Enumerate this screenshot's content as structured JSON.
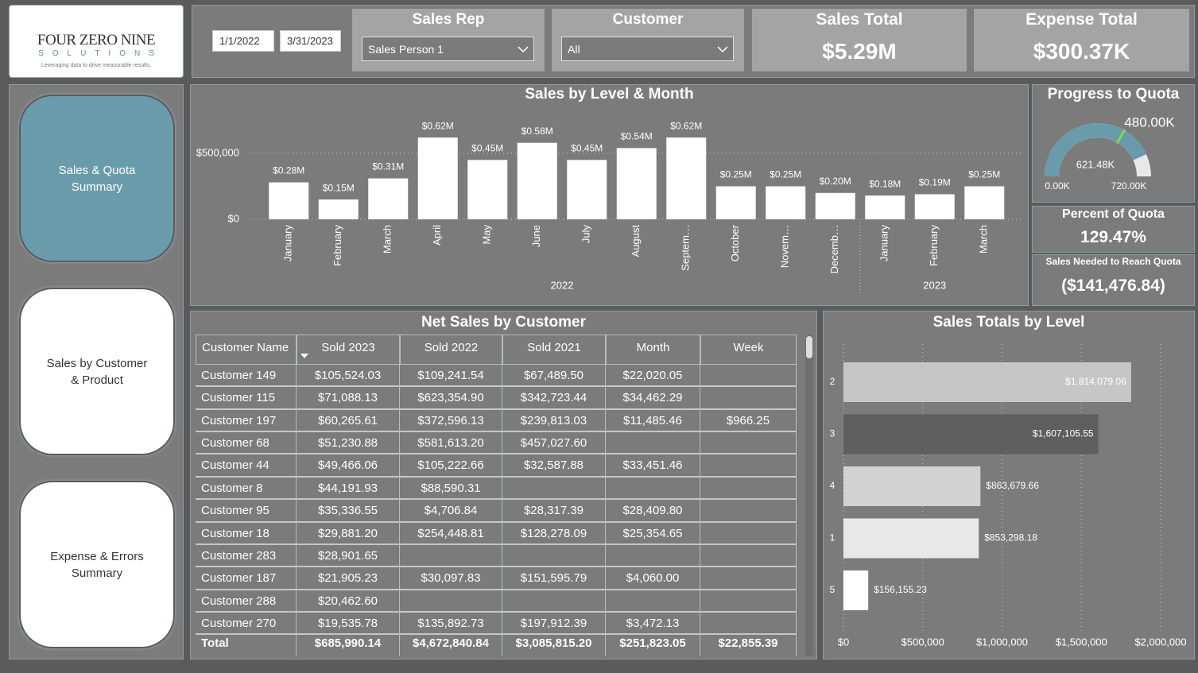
{
  "logo": {
    "words": [
      "FOUR",
      "ZERO",
      "NINE"
    ],
    "subtitle": "SOLUTIONS",
    "tagline": "Leveraging data to drive measurable results."
  },
  "navigation": [
    "Sales & Quota Summary",
    "Sales by Customer & Product",
    "Expense & Errors Summary"
  ],
  "filters": {
    "start_date": "1/1/2022",
    "end_date": "3/31/2023",
    "sales_rep": {
      "label": "Sales Rep",
      "value": "Sales Person 1"
    },
    "customer": {
      "label": "Customer",
      "value": "All"
    }
  },
  "kpis": {
    "sales_total": {
      "label": "Sales Total",
      "value": "$5.29M"
    },
    "expense_total": {
      "label": "Expense Total",
      "value": "$300.37K"
    },
    "percent_quota": {
      "label": "Percent of Quota",
      "value": "129.47%"
    },
    "sales_needed": {
      "label": "Sales Needed to Reach Quota",
      "value": "($141,476.84)"
    }
  },
  "table": {
    "title": "Net Sales by Customer",
    "columns": [
      "Customer Name",
      "Sold 2023",
      "Sold 2022",
      "Sold 2021",
      "Month",
      "Week"
    ],
    "rows": [
      [
        "Customer 149",
        "$105,524.03",
        "$109,241.54",
        "$67,489.50",
        "$22,020.05",
        null
      ],
      [
        "Customer 115",
        "$71,088.13",
        "$623,354.90",
        "$342,723.44",
        "$34,462.29",
        null
      ],
      [
        "Customer 197",
        "$60,265.61",
        "$372,596.13",
        "$239,813.03",
        "$11,485.46",
        "$966.25"
      ],
      [
        "Customer 68",
        "$51,230.88",
        "$581,613.20",
        "$457,027.60",
        null,
        null
      ],
      [
        "Customer 44",
        "$49,466.06",
        "$105,222.66",
        "$32,587.88",
        "$33,451.46",
        null
      ],
      [
        "Customer 8",
        "$44,191.93",
        "$88,590.31",
        null,
        null,
        null
      ],
      [
        "Customer 95",
        "$35,336.55",
        "$4,706.84",
        "$28,317.39",
        "$28,409.80",
        null
      ],
      [
        "Customer 18",
        "$29,881.20",
        "$254,448.81",
        "$128,278.09",
        "$25,354.65",
        null
      ],
      [
        "Customer 283",
        "$28,901.65",
        null,
        null,
        null,
        null
      ],
      [
        "Customer 187",
        "$21,905.23",
        "$30,097.83",
        "$151,595.79",
        "$4,060.00",
        null
      ],
      [
        "Customer 288",
        "$20,462.60",
        null,
        null,
        null,
        null
      ],
      [
        "Customer 270",
        "$19,535.78",
        "$135,892.73",
        "$197,912.39",
        "$3,472.13",
        null
      ]
    ],
    "total": [
      "Total",
      "$685,990.14",
      "$4,672,840.84",
      "$3,085,815.20",
      "$251,823.05",
      "$22,855.39"
    ]
  },
  "chart_data": [
    {
      "type": "bar",
      "title": "Sales by Level & Month",
      "categories": [
        "January",
        "February",
        "March",
        "April",
        "May",
        "June",
        "July",
        "August",
        "Septem…",
        "October",
        "Novem…",
        "Decemb…",
        "January",
        "February",
        "March"
      ],
      "year_groups": [
        {
          "label": "2022",
          "size": 12
        },
        {
          "label": "2023",
          "size": 3
        }
      ],
      "values": [
        280000,
        150000,
        310000,
        620000,
        450000,
        580000,
        450000,
        540000,
        620000,
        250000,
        250000,
        200000,
        180000,
        190000,
        250000
      ],
      "value_labels": [
        "$0.28M",
        "$0.15M",
        "$0.31M",
        "$0.62M",
        "$0.45M",
        "$0.58M",
        "$0.45M",
        "$0.54M",
        "$0.62M",
        "$0.25M",
        "$0.25M",
        "$0.20M",
        "$0.18M",
        "$0.19M",
        "$0.25M"
      ],
      "color": "#ffffff",
      "ylim": [
        0,
        700000
      ],
      "yticks": [
        {
          "value": 0,
          "label": "$0"
        },
        {
          "value": 500000,
          "label": "$500,000"
        }
      ],
      "grid": true
    },
    {
      "type": "gauge",
      "title": "Progress to Quota",
      "value": 621480,
      "value_label": "621.48K",
      "target": 480000,
      "target_label": "480.00K",
      "min": 0,
      "min_label": "0.00K",
      "max": 720000,
      "max_label": "720.00K",
      "color": "#6a9bab",
      "target_color": "#8fd14f"
    },
    {
      "type": "hbar",
      "title": "Sales Totals by Level",
      "categories": [
        "2",
        "3",
        "4",
        "1",
        "5"
      ],
      "values": [
        1814079.06,
        1607105.55,
        863679.66,
        853298.18,
        156155.23
      ],
      "value_labels": [
        "$1,814,079.06",
        "$1,607,105.55",
        "$863,679.66",
        "$853,298.18",
        "$156,155.23"
      ],
      "colors": [
        "#c6c6c6",
        "#5e5e5e",
        "#d2d2d2",
        "#e8e8e8",
        "#ffffff"
      ],
      "xlim": [
        0,
        2000000
      ],
      "xticks": [
        {
          "value": 0,
          "label": "$0"
        },
        {
          "value": 500000,
          "label": "$500,000"
        },
        {
          "value": 1000000,
          "label": "$1,000,000"
        },
        {
          "value": 1500000,
          "label": "$1,500,000"
        },
        {
          "value": 2000000,
          "label": "$2,000,000"
        }
      ],
      "grid": true
    }
  ]
}
